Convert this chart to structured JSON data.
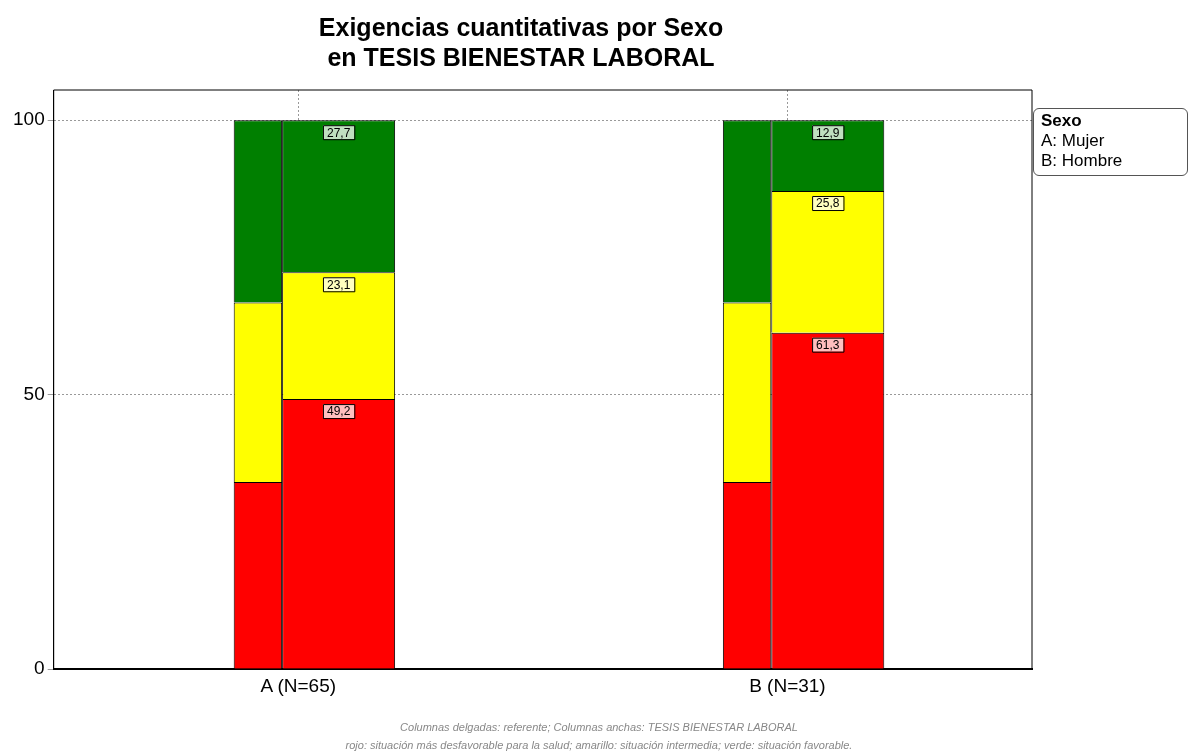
{
  "chart_data": {
    "type": "bar",
    "title": "Exigencias cuantitativas por Sexo\nen TESIS BIENESTAR LABORAL",
    "legend_title": "Sexo",
    "categories": [
      "A (N=65)",
      "B (N=31)"
    ],
    "series": [
      {
        "color": "#ff0000",
        "base": [
          0,
          0
        ],
        "values": [
          34.1,
          34.1
        ]
      },
      {
        "color": "#ffff00",
        "base": [
          34.1,
          34.1
        ],
        "values": [
          32.7,
          32.7
        ]
      },
      {
        "color": "#007f00",
        "base": [
          66.8,
          66.8
        ],
        "values": [
          33.2,
          33.2
        ]
      },
      {
        "color": "#ff0000",
        "base": [
          0,
          0
        ],
        "values": [
          49.2,
          61.3
        ],
        "value_labels": [
          "49,2",
          "61,3"
        ]
      },
      {
        "color": "#ffff00",
        "base": [
          49.2,
          61.3
        ],
        "values": [
          23.1,
          25.8
        ],
        "value_labels": [
          "23,1",
          "25,8"
        ]
      },
      {
        "color": "#007f00",
        "base": [
          72.3,
          87.1
        ],
        "values": [
          27.7,
          12.9
        ],
        "value_labels": [
          "27,7",
          "12,9"
        ]
      }
    ],
    "ylim": [
      0,
      105.5
    ],
    "yticks": [
      0,
      50,
      100
    ],
    "grid": true,
    "legend": false,
    "annotations": [
      "A: Mujer",
      "B: Hombre",
      "Columnas delgadas: referente; Columnas anchas: TESIS BIENESTAR LABORAL",
      "rojo: situación más desfavorable para la salud; amarillo: situación intermedia; verde: situación favorable."
    ]
  }
}
